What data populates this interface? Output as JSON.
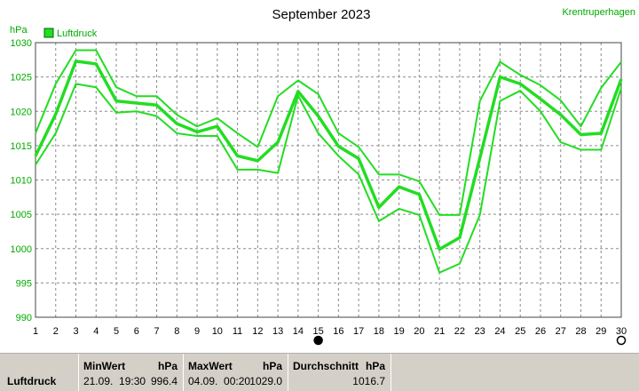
{
  "chart_data": {
    "type": "line",
    "title": "September 2023",
    "station": "Krentruperhagen",
    "ylabel": "hPa",
    "legend": "Luftdruck",
    "legend_placement": "top-left",
    "grid": true,
    "ylim": [
      990,
      1030
    ],
    "yticks": [
      990,
      995,
      1000,
      1005,
      1010,
      1015,
      1020,
      1025,
      1030
    ],
    "x": [
      1,
      2,
      3,
      4,
      5,
      6,
      7,
      8,
      9,
      10,
      11,
      12,
      13,
      14,
      15,
      16,
      17,
      18,
      19,
      20,
      21,
      22,
      23,
      24,
      25,
      26,
      27,
      28,
      29,
      30
    ],
    "series": [
      {
        "role": "max",
        "values": [
          1016.8,
          1024.0,
          1028.9,
          1028.9,
          1023.5,
          1022.2,
          1022.2,
          1019.5,
          1017.8,
          1019.0,
          1016.8,
          1014.8,
          1022.2,
          1024.5,
          1022.5,
          1016.8,
          1014.8,
          1010.8,
          1010.8,
          1009.8,
          1004.9,
          1004.9,
          1021.5,
          1027.2,
          1025.3,
          1023.8,
          1021.6,
          1017.8,
          1023.4,
          1027.2
        ]
      },
      {
        "role": "avg",
        "values": [
          1013.5,
          1019.6,
          1027.3,
          1026.9,
          1021.5,
          1021.2,
          1020.9,
          1018.2,
          1017.0,
          1017.8,
          1013.5,
          1012.8,
          1015.5,
          1022.9,
          1019.3,
          1014.9,
          1013.1,
          1006.0,
          1009.0,
          1007.9,
          999.9,
          1001.6,
          1013.2,
          1025.0,
          1024.0,
          1021.8,
          1019.5,
          1016.6,
          1016.8,
          1024.7
        ]
      },
      {
        "role": "min",
        "values": [
          1012.2,
          1016.8,
          1024.0,
          1023.5,
          1019.8,
          1020.0,
          1019.3,
          1016.8,
          1016.4,
          1016.4,
          1011.5,
          1011.5,
          1011.0,
          1022.3,
          1016.8,
          1013.5,
          1010.8,
          1004.0,
          1005.8,
          1004.9,
          996.5,
          997.8,
          1004.9,
          1021.5,
          1023.0,
          1020.0,
          1015.5,
          1014.4,
          1014.4,
          1023.4
        ]
      }
    ],
    "markers": [
      {
        "day": 15,
        "type": "filled-circle"
      },
      {
        "day": 30,
        "type": "open-circle"
      }
    ],
    "line_color": "#22dd22"
  },
  "stats": {
    "row_label": "Luftdruck",
    "min": {
      "label": "MinWert",
      "unit": "hPa",
      "when": "21.09.  19:30",
      "value": "996.4"
    },
    "max": {
      "label": "MaxWert",
      "unit": "hPa",
      "when": "04.09.  00:20",
      "value": "1029.0"
    },
    "avg": {
      "label": "Durchschnitt",
      "unit": "hPa",
      "value": "1016.7"
    }
  }
}
